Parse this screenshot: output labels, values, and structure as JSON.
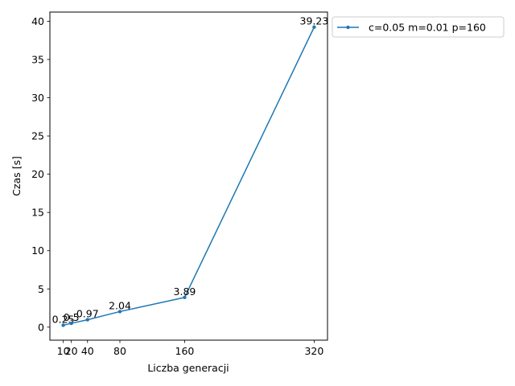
{
  "chart_data": {
    "type": "line",
    "title": "",
    "xlabel": "Liczba generacji",
    "ylabel": "Czas [s]",
    "x": [
      10,
      20,
      40,
      80,
      160,
      320
    ],
    "xticks": [
      10,
      20,
      40,
      80,
      160,
      320
    ],
    "yticks": [
      0,
      5,
      10,
      15,
      20,
      25,
      30,
      35,
      40
    ],
    "xlim": [
      -6.5,
      336.5
    ],
    "ylim": [
      -1.7,
      41.2
    ],
    "grid": false,
    "legend_position": "outside-top-right",
    "series": [
      {
        "name": "c=0.05 m=0.01 p=160",
        "color": "#1f77b4",
        "marker": "dot",
        "values": [
          0.25,
          0.5,
          0.97,
          2.04,
          3.89,
          39.23
        ],
        "data_labels": [
          "0.25",
          "0.5",
          "0.97",
          "2.04",
          "3.89",
          "39.23"
        ]
      }
    ]
  }
}
